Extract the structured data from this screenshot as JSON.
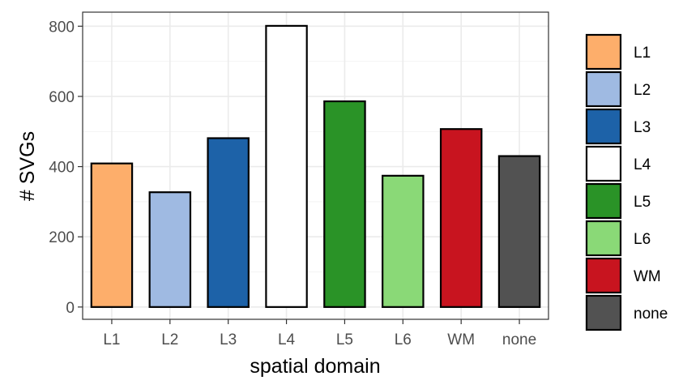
{
  "chart_data": {
    "type": "bar",
    "xlabel": "spatial domain",
    "ylabel": "# SVGs",
    "categories": [
      "L1",
      "L2",
      "L3",
      "L4",
      "L5",
      "L6",
      "WM",
      "none"
    ],
    "values": [
      409,
      327,
      481,
      801,
      586,
      374,
      507,
      430
    ],
    "colors": [
      "#FDAE6B",
      "#9FBAE2",
      "#1D62A8",
      "#FFFFFF",
      "#2A9327",
      "#8AD977",
      "#C8141F",
      "#525252"
    ],
    "ylim": [
      -35,
      840
    ],
    "yticks": [
      0,
      200,
      400,
      600,
      800
    ],
    "ytick_labels": [
      "0",
      "200",
      "400",
      "600",
      "800"
    ],
    "grid": true,
    "legend": {
      "placement": "right",
      "entries": [
        "L1",
        "L2",
        "L3",
        "L4",
        "L5",
        "L6",
        "WM",
        "none"
      ]
    }
  }
}
